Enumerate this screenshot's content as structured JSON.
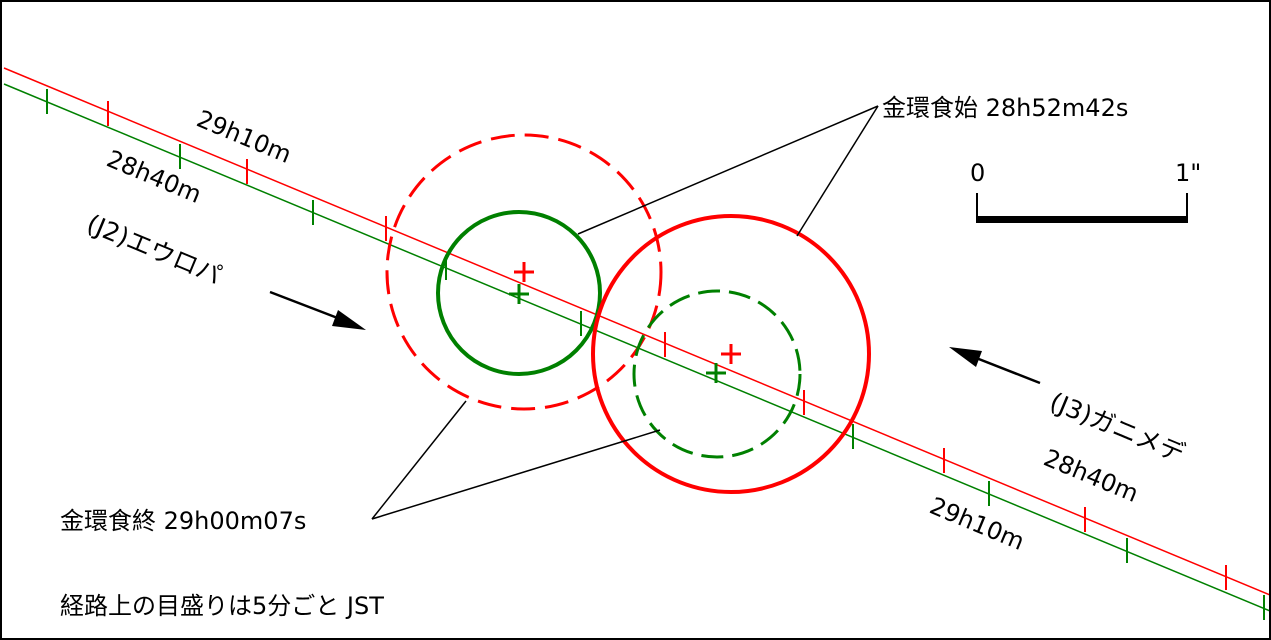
{
  "labels": {
    "europa": "(J2)エウロパ",
    "ganymede": "(J3)ガニメデ",
    "annular_start": "金環食始 28h52m42s",
    "annular_end": "金環食終 29h00m07s",
    "tick_note": "経路上の目盛りは5分ごと JST"
  },
  "europa_path_labels": {
    "red_time": "29h10m",
    "green_time": "28h40m"
  },
  "ganymede_path_labels": {
    "red_time": "28h40m",
    "green_time": "29h10m"
  },
  "scale_bar": {
    "zero_label": "0",
    "one_label": "1\""
  },
  "colors": {
    "red_path": "#ff0000",
    "green_path": "#008000",
    "ink": "#000000"
  }
}
